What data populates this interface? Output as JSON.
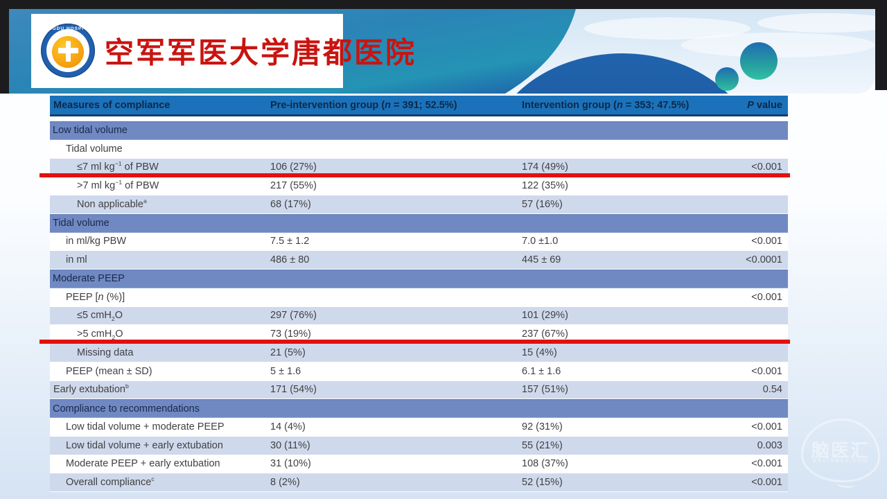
{
  "logo": {
    "ring_text": "TANGDU HOSPITAL",
    "ring_stars": "★★★★",
    "title_cn": "空军军医大学唐都医院"
  },
  "watermark": {
    "text": "脑医汇",
    "subtext": "BRAINMED.COM"
  },
  "colors": {
    "frame": "#1C1C1E",
    "header_bg": "#1B72BA",
    "header_text": "#0D2949",
    "section_bg": "#7089C2",
    "light_row_bg": "#CFD9EC",
    "body_text": "#404042",
    "red_line": "#E3100E",
    "logo_red": "#C9140F"
  },
  "table": {
    "headers": [
      "Measures of compliance",
      "Pre-intervention group  (<i>n</i> = 391; 52.5%)",
      "Intervention group (<i>n</i> = 353; 47.5%)",
      "<i>P</i> value"
    ],
    "rows": [
      {
        "type": "section",
        "label": "Low tidal volume"
      },
      {
        "type": "item",
        "indent": 1,
        "shade": "white",
        "label": "Tidal volume",
        "c1": "",
        "c2": "",
        "p": ""
      },
      {
        "type": "item",
        "indent": 2,
        "shade": "light",
        "label": "≤7 ml kg<sup>−1</sup> of PBW",
        "c1": "106 (27%)",
        "c2": "174 (49%)",
        "p": "<0.001",
        "redline": true
      },
      {
        "type": "item",
        "indent": 2,
        "shade": "white",
        "label": ">7 ml kg<sup>−1</sup> of PBW",
        "c1": "217 (55%)",
        "c2": "122 (35%)",
        "p": ""
      },
      {
        "type": "item",
        "indent": 2,
        "shade": "light",
        "label": "Non applicable<sup>a</sup>",
        "c1": "68 (17%)",
        "c2": "57 (16%)",
        "p": ""
      },
      {
        "type": "section",
        "label": "Tidal volume"
      },
      {
        "type": "item",
        "indent": 1,
        "shade": "white",
        "label": "in ml/kg PBW",
        "c1": "7.5 ± 1.2",
        "c2": "7.0 ±1.0",
        "p": "<0.001"
      },
      {
        "type": "item",
        "indent": 1,
        "shade": "light",
        "label": "in ml",
        "c1": "486 ± 80",
        "c2": "445 ± 69",
        "p": "<0.0001"
      },
      {
        "type": "section",
        "label": "Moderate PEEP"
      },
      {
        "type": "item",
        "indent": 1,
        "shade": "white",
        "label": "PEEP [<i>n</i> (%)]",
        "c1": "",
        "c2": "",
        "p": "<0.001"
      },
      {
        "type": "item",
        "indent": 2,
        "shade": "light",
        "label": "≤5 cmH<sub>2</sub>O",
        "c1": "297 (76%)",
        "c2": "101 (29%)",
        "p": ""
      },
      {
        "type": "item",
        "indent": 2,
        "shade": "white",
        "label": ">5 cmH<sub>2</sub>O",
        "c1": "73 (19%)",
        "c2": "237 (67%)",
        "p": "",
        "redline": true
      },
      {
        "type": "item",
        "indent": 2,
        "shade": "light",
        "label": "Missing data",
        "c1": "21 (5%)",
        "c2": "15 (4%)",
        "p": ""
      },
      {
        "type": "item",
        "indent": 1,
        "shade": "white",
        "label": "PEEP (mean ± SD)",
        "c1": "5 ± 1.6",
        "c2": "6.1 ± 1.6",
        "p": "<0.001"
      },
      {
        "type": "item",
        "indent": 0,
        "shade": "light",
        "label": "Early extubation<sup>b</sup>",
        "c1": "171 (54%)",
        "c2": "157 (51%)",
        "p": "0.54"
      },
      {
        "type": "section",
        "label": "Compliance to recommendations"
      },
      {
        "type": "item",
        "indent": 1,
        "shade": "white",
        "label": "Low tidal volume + moderate PEEP",
        "c1": "14 (4%)",
        "c2": "92 (31%)",
        "p": "<0.001"
      },
      {
        "type": "item",
        "indent": 1,
        "shade": "light",
        "label": "Low tidal volume + early extubation",
        "c1": "30 (11%)",
        "c2": "55 (21%)",
        "p": "0.003"
      },
      {
        "type": "item",
        "indent": 1,
        "shade": "white",
        "label": "Moderate PEEP + early extubation",
        "c1": "31 (10%)",
        "c2": "108 (37%)",
        "p": "<0.001"
      },
      {
        "type": "item",
        "indent": 1,
        "shade": "light",
        "label": "Overall compliance<sup>c</sup>",
        "c1": "8 (2%)",
        "c2": "52 (15%)",
        "p": "<0.001"
      }
    ]
  }
}
